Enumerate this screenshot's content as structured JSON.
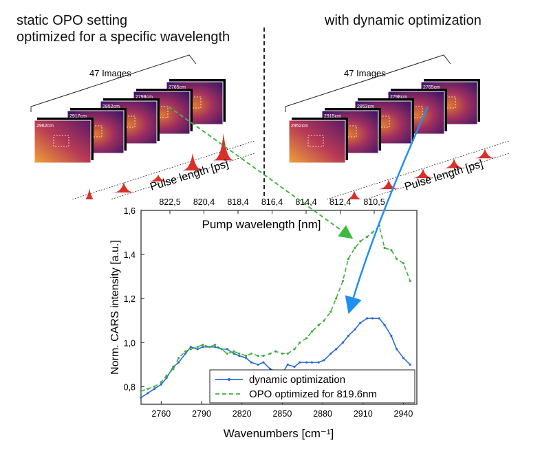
{
  "headers": {
    "left_line1": "static OPO setting",
    "left_line2": "optimized for a specific wavelength",
    "right": "with dynamic optimization"
  },
  "left_stack": {
    "count_label": "47 Images",
    "axis_label": "Pulse length [ps]",
    "frame_labels": [
      "2962cm",
      "2917cm",
      "2852cm",
      "2798cm",
      "2765cm"
    ]
  },
  "right_stack": {
    "count_label": "47 Images",
    "axis_label": "Pulse length [ps]",
    "frame_labels": [
      "2952cm",
      "2915cm",
      "2853cm",
      "2798cm",
      "2765cm"
    ]
  },
  "colors": {
    "dynamic": "#2a6bd6",
    "opo": "#3fae3f",
    "arrow_blue": "#1f8ff0",
    "arrow_green": "#3fb83f",
    "pulse": "#d8312a"
  },
  "chart_data": {
    "type": "line",
    "xlabel": "Wavenumbers [cm⁻¹]",
    "ylabel": "Norm. CARS intensity [a.u.]",
    "top_axis_label": "Pump wavelength [nm]",
    "top_ticks": [
      "822,5",
      "820,4",
      "818,4",
      "816,4",
      "814,4",
      "812,4",
      "810,5"
    ],
    "xlim": [
      2745,
      2950
    ],
    "ylim": [
      0.72,
      1.6
    ],
    "xticks": [
      2760,
      2790,
      2820,
      2850,
      2880,
      2910,
      2940
    ],
    "yticks": [
      0.8,
      1.0,
      1.2,
      1.4,
      1.6
    ],
    "ytick_labels": [
      "0,8",
      "1,0",
      "1,2",
      "1,4",
      "1,6"
    ],
    "legend_position": "bottom-right",
    "series": [
      {
        "name": "dynamic optimization",
        "style": "solid",
        "x": [
          2745,
          2750,
          2755,
          2760,
          2764,
          2769,
          2773,
          2778,
          2782,
          2787,
          2791,
          2796,
          2800,
          2805,
          2809,
          2814,
          2818,
          2823,
          2827,
          2832,
          2836,
          2841,
          2845,
          2850,
          2854,
          2859,
          2863,
          2868,
          2872,
          2877,
          2881,
          2886,
          2890,
          2895,
          2899,
          2904,
          2908,
          2913,
          2917,
          2922,
          2926,
          2931,
          2935,
          2940,
          2945
        ],
        "values": [
          0.75,
          0.77,
          0.79,
          0.81,
          0.84,
          0.89,
          0.91,
          0.95,
          0.98,
          0.97,
          0.98,
          0.98,
          0.98,
          0.97,
          0.97,
          0.95,
          0.94,
          0.93,
          0.91,
          0.9,
          0.91,
          0.88,
          0.87,
          0.86,
          0.9,
          0.89,
          0.91,
          0.91,
          0.91,
          0.91,
          0.92,
          0.95,
          0.97,
          1.0,
          1.03,
          1.06,
          1.09,
          1.11,
          1.11,
          1.11,
          1.08,
          1.03,
          0.97,
          0.93,
          0.9
        ]
      },
      {
        "name": "OPO optimized for 819.6nm",
        "style": "dashed",
        "x": [
          2745,
          2750,
          2755,
          2760,
          2764,
          2769,
          2773,
          2778,
          2782,
          2787,
          2791,
          2796,
          2800,
          2805,
          2809,
          2814,
          2818,
          2823,
          2827,
          2832,
          2836,
          2841,
          2845,
          2850,
          2854,
          2859,
          2863,
          2868,
          2872,
          2877,
          2881,
          2886,
          2890,
          2895,
          2899,
          2904,
          2908,
          2913,
          2917,
          2922,
          2926,
          2931,
          2935,
          2940,
          2945
        ],
        "values": [
          0.78,
          0.79,
          0.8,
          0.82,
          0.85,
          0.88,
          0.93,
          0.96,
          0.97,
          0.98,
          0.99,
          0.98,
          0.99,
          0.97,
          0.95,
          0.96,
          0.95,
          0.94,
          0.95,
          0.94,
          0.94,
          0.95,
          0.96,
          0.95,
          0.95,
          0.97,
          1.0,
          1.02,
          1.05,
          1.08,
          1.1,
          1.14,
          1.2,
          1.28,
          1.38,
          1.43,
          1.46,
          1.48,
          1.5,
          1.53,
          1.43,
          1.42,
          1.38,
          1.36,
          1.28
        ]
      }
    ]
  }
}
